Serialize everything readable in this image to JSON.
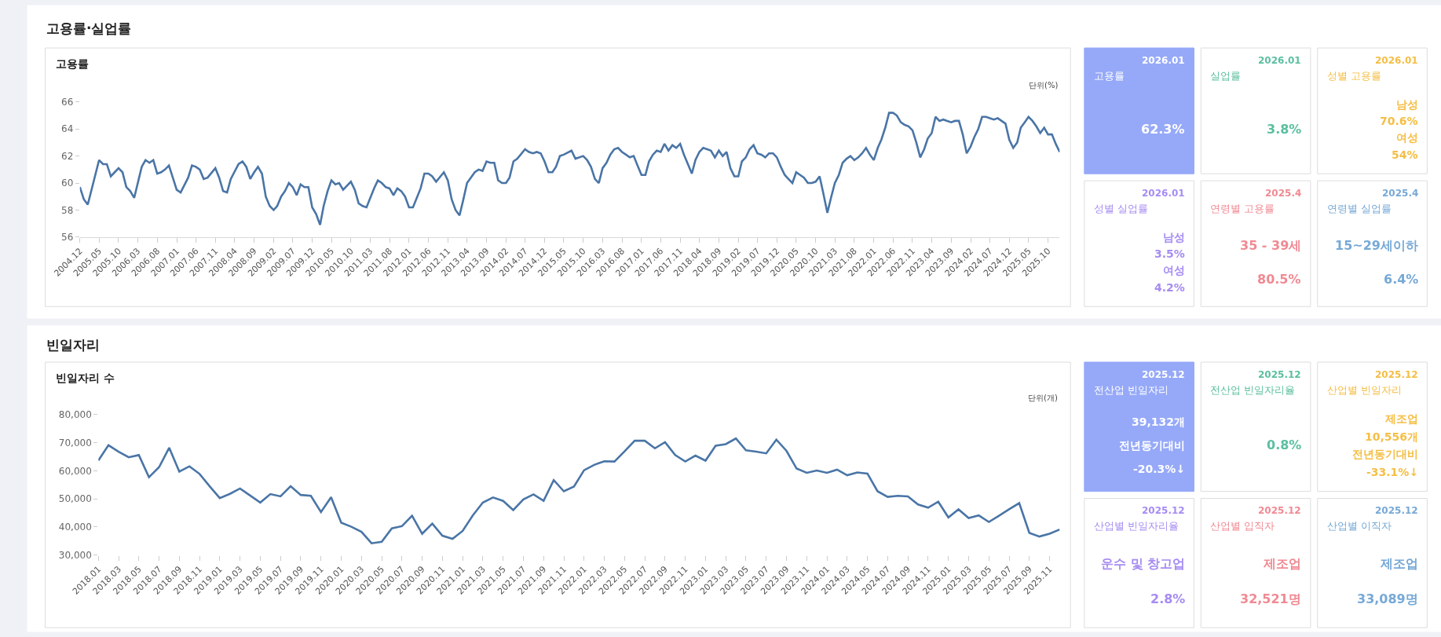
{
  "chart_data": [
    {
      "type": "other",
      "title": "고용률·실업률"
    },
    {
      "type": "line",
      "title": "고용률",
      "annotations": [
        "단위(%)"
      ],
      "color": "#4a75a6",
      "ylim": [
        56,
        66
      ],
      "yticks": [
        56,
        58,
        60,
        62,
        64,
        66
      ],
      "xlim": [
        "2004-12",
        "2026-01"
      ],
      "xticks": [
        {
          "value": "2004-12",
          "label": "2004.12"
        },
        {
          "value": "2005-05",
          "label": "2005.05"
        },
        {
          "value": "2005-10",
          "label": "2005.10"
        },
        {
          "value": "2006-03",
          "label": "2006.03"
        },
        {
          "value": "2006-08",
          "label": "2006.08"
        },
        {
          "value": "2007-01",
          "label": "2007.01"
        },
        {
          "value": "2007-06",
          "label": "2007.06"
        },
        {
          "value": "2007-11",
          "label": "2007.11"
        },
        {
          "value": "2008-04",
          "label": "2008.04"
        },
        {
          "value": "2008-09",
          "label": "2008.09"
        },
        {
          "value": "2009-02",
          "label": "2009.02"
        },
        {
          "value": "2009-07",
          "label": "2009.07"
        },
        {
          "value": "2009-12",
          "label": "2009.12"
        },
        {
          "value": "2010-05",
          "label": "2010.05"
        },
        {
          "value": "2010-10",
          "label": "2010.10"
        },
        {
          "value": "2011-03",
          "label": "2011.03"
        },
        {
          "value": "2011-08",
          "label": "2011.08"
        },
        {
          "value": "2012-01",
          "label": "2012.01"
        },
        {
          "value": "2012-06",
          "label": "2012.06"
        },
        {
          "value": "2012-11",
          "label": "2012.11"
        },
        {
          "value": "2013-04",
          "label": "2013.04"
        },
        {
          "value": "2013-09",
          "label": "2013.09"
        },
        {
          "value": "2014-02",
          "label": "2014.02"
        },
        {
          "value": "2014-07",
          "label": "2014.07"
        },
        {
          "value": "2014-12",
          "label": "2014.12"
        },
        {
          "value": "2015-05",
          "label": "2015.05"
        },
        {
          "value": "2015-10",
          "label": "2015.10"
        },
        {
          "value": "2016-03",
          "label": "2016.03"
        },
        {
          "value": "2016-08",
          "label": "2016.08"
        },
        {
          "value": "2017-01",
          "label": "2017.01"
        },
        {
          "value": "2017-06",
          "label": "2017.06"
        },
        {
          "value": "2017-11",
          "label": "2017.11"
        },
        {
          "value": "2018-04",
          "label": "2018.04"
        },
        {
          "value": "2018-09",
          "label": "2018.09"
        },
        {
          "value": "2019-02",
          "label": "2019.02"
        },
        {
          "value": "2019-07",
          "label": "2019.07"
        },
        {
          "value": "2019-12",
          "label": "2019.12"
        },
        {
          "value": "2020-05",
          "label": "2020.05"
        },
        {
          "value": "2020-10",
          "label": "2020.10"
        },
        {
          "value": "2021-03",
          "label": "2021.03"
        },
        {
          "value": "2021-08",
          "label": "2021.08"
        },
        {
          "value": "2022-01",
          "label": "2022.01"
        },
        {
          "value": "2022-06",
          "label": "2022.06"
        },
        {
          "value": "2022-11",
          "label": "2022.11"
        },
        {
          "value": "2023-04",
          "label": "2023.04"
        },
        {
          "value": "2023-09",
          "label": "2023.09"
        },
        {
          "value": "2024-02",
          "label": "2024.02"
        },
        {
          "value": "2024-07",
          "label": "2024.07"
        },
        {
          "value": "2024-12",
          "label": "2024.12"
        },
        {
          "value": "2025-05",
          "label": "2025.05"
        },
        {
          "value": "2025-10",
          "label": "2025.10"
        }
      ],
      "x": [
        "2004-12",
        "2005-01",
        "2005-02",
        "2005-05",
        "2005-06",
        "2005-07",
        "2005-08",
        "2005-09",
        "2005-10",
        "2005-11",
        "2005-12",
        "2006-01",
        "2006-02",
        "2006-04",
        "2006-05",
        "2006-06",
        "2006-07",
        "2006-08",
        "2006-09",
        "2006-10",
        "2006-11",
        "2007-01",
        "2007-02",
        "2007-04",
        "2007-05",
        "2007-06",
        "2007-07",
        "2007-08",
        "2007-09",
        "2007-11",
        "2007-12",
        "2008-01",
        "2008-02",
        "2008-03",
        "2008-05",
        "2008-06",
        "2008-07",
        "2008-08",
        "2008-09",
        "2008-10",
        "2008-11",
        "2008-12",
        "2009-01",
        "2009-02",
        "2009-03",
        "2009-04",
        "2009-05",
        "2009-06",
        "2009-07",
        "2009-08",
        "2009-09",
        "2009-10",
        "2009-11",
        "2009-12",
        "2010-01",
        "2010-02",
        "2010-03",
        "2010-04",
        "2010-05",
        "2010-06",
        "2010-07",
        "2010-08",
        "2010-10",
        "2010-11",
        "2010-12",
        "2011-01",
        "2011-02",
        "2011-04",
        "2011-05",
        "2011-06",
        "2011-07",
        "2011-08",
        "2011-09",
        "2011-10",
        "2011-11",
        "2011-12",
        "2012-01",
        "2012-02",
        "2012-04",
        "2012-05",
        "2012-06",
        "2012-07",
        "2012-08",
        "2012-10",
        "2012-11",
        "2012-12",
        "2013-01",
        "2013-02",
        "2013-03",
        "2013-04",
        "2013-06",
        "2013-07",
        "2013-08",
        "2013-09",
        "2013-10",
        "2013-11",
        "2013-12",
        "2014-01",
        "2014-02",
        "2014-03",
        "2014-04",
        "2014-05",
        "2014-07",
        "2014-08",
        "2014-09",
        "2014-10",
        "2014-11",
        "2014-12",
        "2015-01",
        "2015-02",
        "2015-03",
        "2015-04",
        "2015-05",
        "2015-07",
        "2015-08",
        "2015-10",
        "2015-11",
        "2015-12",
        "2016-01",
        "2016-02",
        "2016-03",
        "2016-04",
        "2016-05",
        "2016-06",
        "2016-07",
        "2016-08",
        "2016-09",
        "2016-10",
        "2016-11",
        "2016-12",
        "2017-01",
        "2017-02",
        "2017-03",
        "2017-04",
        "2017-05",
        "2017-06",
        "2017-07",
        "2017-08",
        "2017-09",
        "2017-10",
        "2017-11",
        "2017-12",
        "2018-01",
        "2018-02",
        "2018-03",
        "2018-04",
        "2018-05",
        "2018-06",
        "2018-07",
        "2018-08",
        "2018-09",
        "2018-10",
        "2018-11",
        "2018-12",
        "2019-01",
        "2019-02",
        "2019-03",
        "2019-04",
        "2019-05",
        "2019-06",
        "2019-07",
        "2019-08",
        "2019-09",
        "2019-10",
        "2019-11",
        "2019-12",
        "2020-01",
        "2020-02",
        "2020-03",
        "2020-04",
        "2020-05",
        "2020-06",
        "2020-07",
        "2020-08",
        "2020-09",
        "2020-10",
        "2020-11",
        "2020-12",
        "2021-01",
        "2021-02",
        "2021-03",
        "2021-04",
        "2021-05",
        "2021-06",
        "2021-07",
        "2021-08",
        "2021-09",
        "2021-10",
        "2021-11",
        "2021-12",
        "2022-01",
        "2022-02",
        "2022-03",
        "2022-04",
        "2022-05",
        "2022-06",
        "2022-07",
        "2022-08",
        "2022-09",
        "2022-10",
        "2022-11",
        "2022-12",
        "2023-01",
        "2023-02",
        "2023-03",
        "2023-04",
        "2023-05",
        "2023-06",
        "2023-07",
        "2023-08",
        "2023-09",
        "2023-10",
        "2023-11",
        "2023-12",
        "2024-01",
        "2024-02",
        "2024-03",
        "2024-04",
        "2024-05",
        "2024-06",
        "2024-07",
        "2024-08",
        "2024-09",
        "2024-10",
        "2024-11",
        "2024-12",
        "2025-01",
        "2025-02",
        "2025-03",
        "2025-04",
        "2025-05",
        "2025-06",
        "2025-07",
        "2025-08",
        "2025-09",
        "2025-10",
        "2025-11",
        "2025-12",
        "2026-01"
      ],
      "values": [
        59.7,
        58.8,
        58.4,
        61.7,
        61.4,
        61.4,
        60.5,
        60.8,
        61.1,
        60.8,
        59.7,
        59.4,
        58.9,
        61.2,
        61.7,
        61.5,
        61.7,
        60.7,
        60.8,
        61.0,
        61.3,
        59.5,
        59.3,
        60.4,
        61.3,
        61.2,
        61.0,
        60.3,
        60.4,
        61.1,
        60.4,
        59.4,
        59.3,
        60.3,
        61.4,
        61.6,
        61.2,
        60.3,
        60.8,
        61.2,
        60.7,
        59.0,
        58.3,
        58.0,
        58.3,
        59.0,
        59.4,
        60.0,
        59.7,
        59.1,
        59.9,
        59.7,
        59.7,
        58.2,
        57.7,
        56.9,
        58.3,
        59.4,
        60.2,
        59.9,
        60.0,
        59.5,
        60.1,
        59.5,
        58.5,
        58.3,
        58.2,
        59.6,
        60.2,
        60.0,
        59.7,
        59.6,
        59.1,
        59.6,
        59.4,
        59.0,
        58.2,
        58.2,
        59.6,
        60.7,
        60.7,
        60.5,
        60.1,
        60.8,
        60.2,
        58.8,
        58.0,
        57.6,
        58.7,
        60.0,
        60.8,
        61.0,
        60.9,
        61.6,
        61.5,
        61.5,
        60.2,
        60.0,
        60.0,
        60.4,
        61.6,
        61.8,
        62.5,
        62.3,
        62.2,
        62.3,
        62.2,
        61.6,
        60.8,
        60.8,
        61.2,
        62.0,
        62.1,
        62.4,
        61.8,
        62.0,
        61.7,
        61.2,
        60.3,
        60.0,
        61.1,
        61.5,
        62.1,
        62.5,
        62.6,
        62.3,
        62.1,
        61.9,
        62.0,
        61.3,
        60.6,
        60.6,
        61.6,
        62.1,
        62.4,
        62.3,
        62.9,
        62.4,
        62.8,
        62.6,
        62.9,
        62.1,
        61.4,
        60.7,
        61.7,
        62.3,
        62.6,
        62.5,
        62.4,
        61.9,
        62.4,
        62.0,
        62.3,
        61.1,
        60.5,
        60.5,
        61.6,
        61.9,
        62.5,
        62.8,
        62.2,
        62.1,
        61.9,
        62.2,
        62.2,
        61.9,
        61.2,
        60.6,
        60.3,
        60.0,
        60.8,
        60.6,
        60.4,
        60.0,
        60.0,
        60.1,
        60.5,
        59.2,
        57.8,
        59.0,
        60.0,
        60.6,
        61.5,
        61.8,
        62.0,
        61.7,
        61.9,
        62.2,
        62.6,
        62.1,
        61.7,
        62.6,
        63.2,
        64.1,
        65.2,
        65.2,
        65.0,
        64.5,
        64.3,
        64.2,
        63.9,
        63.0,
        61.9,
        62.5,
        63.3,
        63.7,
        64.9,
        64.6,
        64.7,
        64.6,
        64.5,
        64.6,
        64.6,
        63.6,
        62.2,
        62.7,
        63.4,
        64.0,
        64.9,
        64.9,
        64.8,
        64.7,
        64.8,
        64.6,
        64.4,
        63.2,
        62.6,
        63.0,
        64.1,
        64.5,
        64.9,
        64.6,
        64.2,
        63.7,
        64.1,
        63.6,
        63.6,
        62.9,
        62.3
      ]
    },
    {
      "type": "other",
      "title": "고용률",
      "subtitle": "2026.01",
      "color": "#ffffff",
      "annotations": [
        "62.3%"
      ]
    },
    {
      "type": "other",
      "title": "실업률",
      "subtitle": "2026.01",
      "color": "#5bbf9f",
      "annotations": [
        "3.8%"
      ]
    },
    {
      "type": "other",
      "title": "성별 고용률",
      "subtitle": "2026.01",
      "color": "#f5be45",
      "annotations": [
        "남성",
        "70.6%",
        "여성",
        "54%"
      ]
    },
    {
      "type": "other",
      "title": "성별 실업률",
      "subtitle": "2026.01",
      "color": "#a68cf2",
      "annotations": [
        "남성",
        "3.5%",
        "여성",
        "4.2%"
      ]
    },
    {
      "type": "other",
      "title": "연령별 고용률",
      "subtitle": "2025.4",
      "color": "#f08a93",
      "annotations": [
        "35 - 39세",
        "80.5%"
      ]
    },
    {
      "type": "other",
      "title": "연령별 실업률",
      "subtitle": "2025.4",
      "color": "#77a9d6",
      "annotations": [
        "15~29세이하",
        "6.4%"
      ]
    },
    {
      "type": "other",
      "title": "빈일자리"
    },
    {
      "type": "line",
      "title": "빈일자리 수",
      "annotations": [
        "단위(개)"
      ],
      "color": "#4a75a6",
      "ylim": [
        30000,
        80000
      ],
      "yticks": [
        {
          "value": 30000,
          "label": "30,000"
        },
        {
          "value": 40000,
          "label": "40,000"
        },
        {
          "value": 50000,
          "label": "50,000"
        },
        {
          "value": 60000,
          "label": "60,000"
        },
        {
          "value": 70000,
          "label": "70,000"
        },
        {
          "value": 80000,
          "label": "80,000"
        }
      ],
      "categories": [
        "2018.01",
        null,
        "2018.03",
        null,
        "2018.05",
        null,
        "2018.07",
        null,
        "2018.09",
        null,
        "2018.11",
        null,
        "2019.01",
        null,
        "2019.03",
        null,
        "2019.05",
        null,
        "2019.07",
        null,
        "2019.09",
        null,
        "2019.11",
        null,
        "2020.01",
        null,
        "2020.03",
        null,
        "2020.05",
        null,
        "2020.07",
        null,
        "2020.09",
        null,
        "2020.11",
        null,
        "2021.01",
        null,
        "2021.03",
        null,
        "2021.05",
        null,
        "2021.07",
        null,
        "2021.09",
        null,
        "2021.11",
        null,
        "2022.01",
        null,
        "2022.03",
        null,
        "2022.05",
        null,
        "2022.07",
        null,
        "2022.09",
        null,
        "2022.11",
        null,
        "2023.01",
        null,
        "2023.03",
        null,
        "2023.05",
        null,
        "2023.07",
        null,
        "2023.09",
        null,
        "2023.11",
        null,
        "2024.01",
        null,
        "2024.03",
        null,
        "2024.05",
        null,
        "2024.07",
        null,
        "2024.09",
        null,
        "2024.11",
        null,
        "2025.01",
        null,
        "2025.03",
        null,
        "2025.05",
        null,
        "2025.07",
        null,
        "2025.09",
        null,
        "2025.11",
        null
      ],
      "values": [
        63700,
        69100,
        66800,
        64800,
        65600,
        57700,
        61300,
        68200,
        59700,
        61600,
        58900,
        54500,
        50300,
        51800,
        53700,
        51200,
        48700,
        51700,
        50900,
        54500,
        51400,
        51100,
        45300,
        50600,
        41500,
        40100,
        38300,
        34200,
        34700,
        39500,
        40300,
        44000,
        37600,
        41200,
        36900,
        35800,
        38600,
        44100,
        48700,
        50500,
        49300,
        46000,
        49800,
        51600,
        49300,
        56700,
        52700,
        54400,
        60200,
        62100,
        63400,
        63300,
        66900,
        70700,
        70700,
        68000,
        70200,
        65600,
        63300,
        65400,
        63600,
        68900,
        69500,
        71500,
        67300,
        66800,
        66200,
        71100,
        67100,
        60800,
        59300,
        60100,
        59300,
        60400,
        58400,
        59400,
        59000,
        52700,
        50700,
        51100,
        50900,
        48000,
        46900,
        49000,
        43400,
        46300,
        43200,
        44100,
        41800,
        44000,
        46300,
        48500,
        37900,
        36600,
        37600,
        39100
      ]
    },
    {
      "type": "other",
      "title": "전산업 빈일자리",
      "subtitle": "2025.12",
      "color": "#ffffff",
      "annotations": [
        "39,132개",
        "전년동기대비",
        "-20.3%↓"
      ]
    },
    {
      "type": "other",
      "title": "전산업 빈일자리율",
      "subtitle": "2025.12",
      "color": "#5bbf9f",
      "annotations": [
        "0.8%"
      ]
    },
    {
      "type": "other",
      "title": "산업별 빈일자리",
      "subtitle": "2025.12",
      "color": "#f5be45",
      "annotations": [
        "제조업",
        "10,556개",
        "전년동기대비",
        "-33.1%↓"
      ]
    },
    {
      "type": "other",
      "title": "산업별 빈일자리율",
      "subtitle": "2025.12",
      "color": "#a68cf2",
      "annotations": [
        "운수 및 창고업",
        "2.8%"
      ]
    },
    {
      "type": "other",
      "title": "산업별 입직자",
      "subtitle": "2025.12",
      "color": "#f08a93",
      "annotations": [
        "제조업",
        "32,521명"
      ]
    },
    {
      "type": "other",
      "title": "산업별 이직자",
      "subtitle": "2025.12",
      "color": "#77a9d6",
      "annotations": [
        "제조업",
        "33,089명"
      ]
    }
  ]
}
